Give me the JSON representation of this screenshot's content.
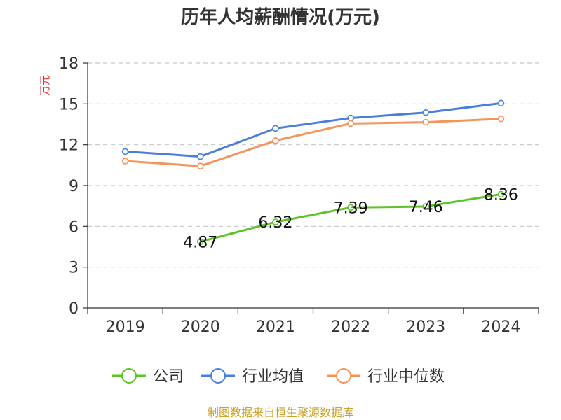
{
  "chart_data": {
    "type": "line",
    "title": "历年人均薪酬情况(万元)",
    "ylabel": "万元",
    "ylim": [
      0,
      18
    ],
    "yticks": [
      0,
      3,
      6,
      9,
      12,
      15,
      18
    ],
    "categories": [
      "2019",
      "2020",
      "2021",
      "2022",
      "2023",
      "2024"
    ],
    "grid": true,
    "legend_position": "bottom",
    "series": [
      {
        "name": "公司",
        "color": "#5cc427",
        "values": [
          null,
          4.87,
          6.32,
          7.39,
          7.46,
          8.36
        ],
        "labels": [
          null,
          "4.87",
          "6.32",
          "7.39",
          "7.46",
          "8.36"
        ]
      },
      {
        "name": "行业均值",
        "color": "#4a7fd9",
        "values": [
          11.5,
          11.13,
          13.2,
          13.96,
          14.36,
          15.05
        ]
      },
      {
        "name": "行业中位数",
        "color": "#f4935a",
        "values": [
          10.8,
          10.43,
          12.3,
          13.56,
          13.65,
          13.9
        ]
      }
    ]
  },
  "source_text": "制图数据来自恒生聚源数据库"
}
